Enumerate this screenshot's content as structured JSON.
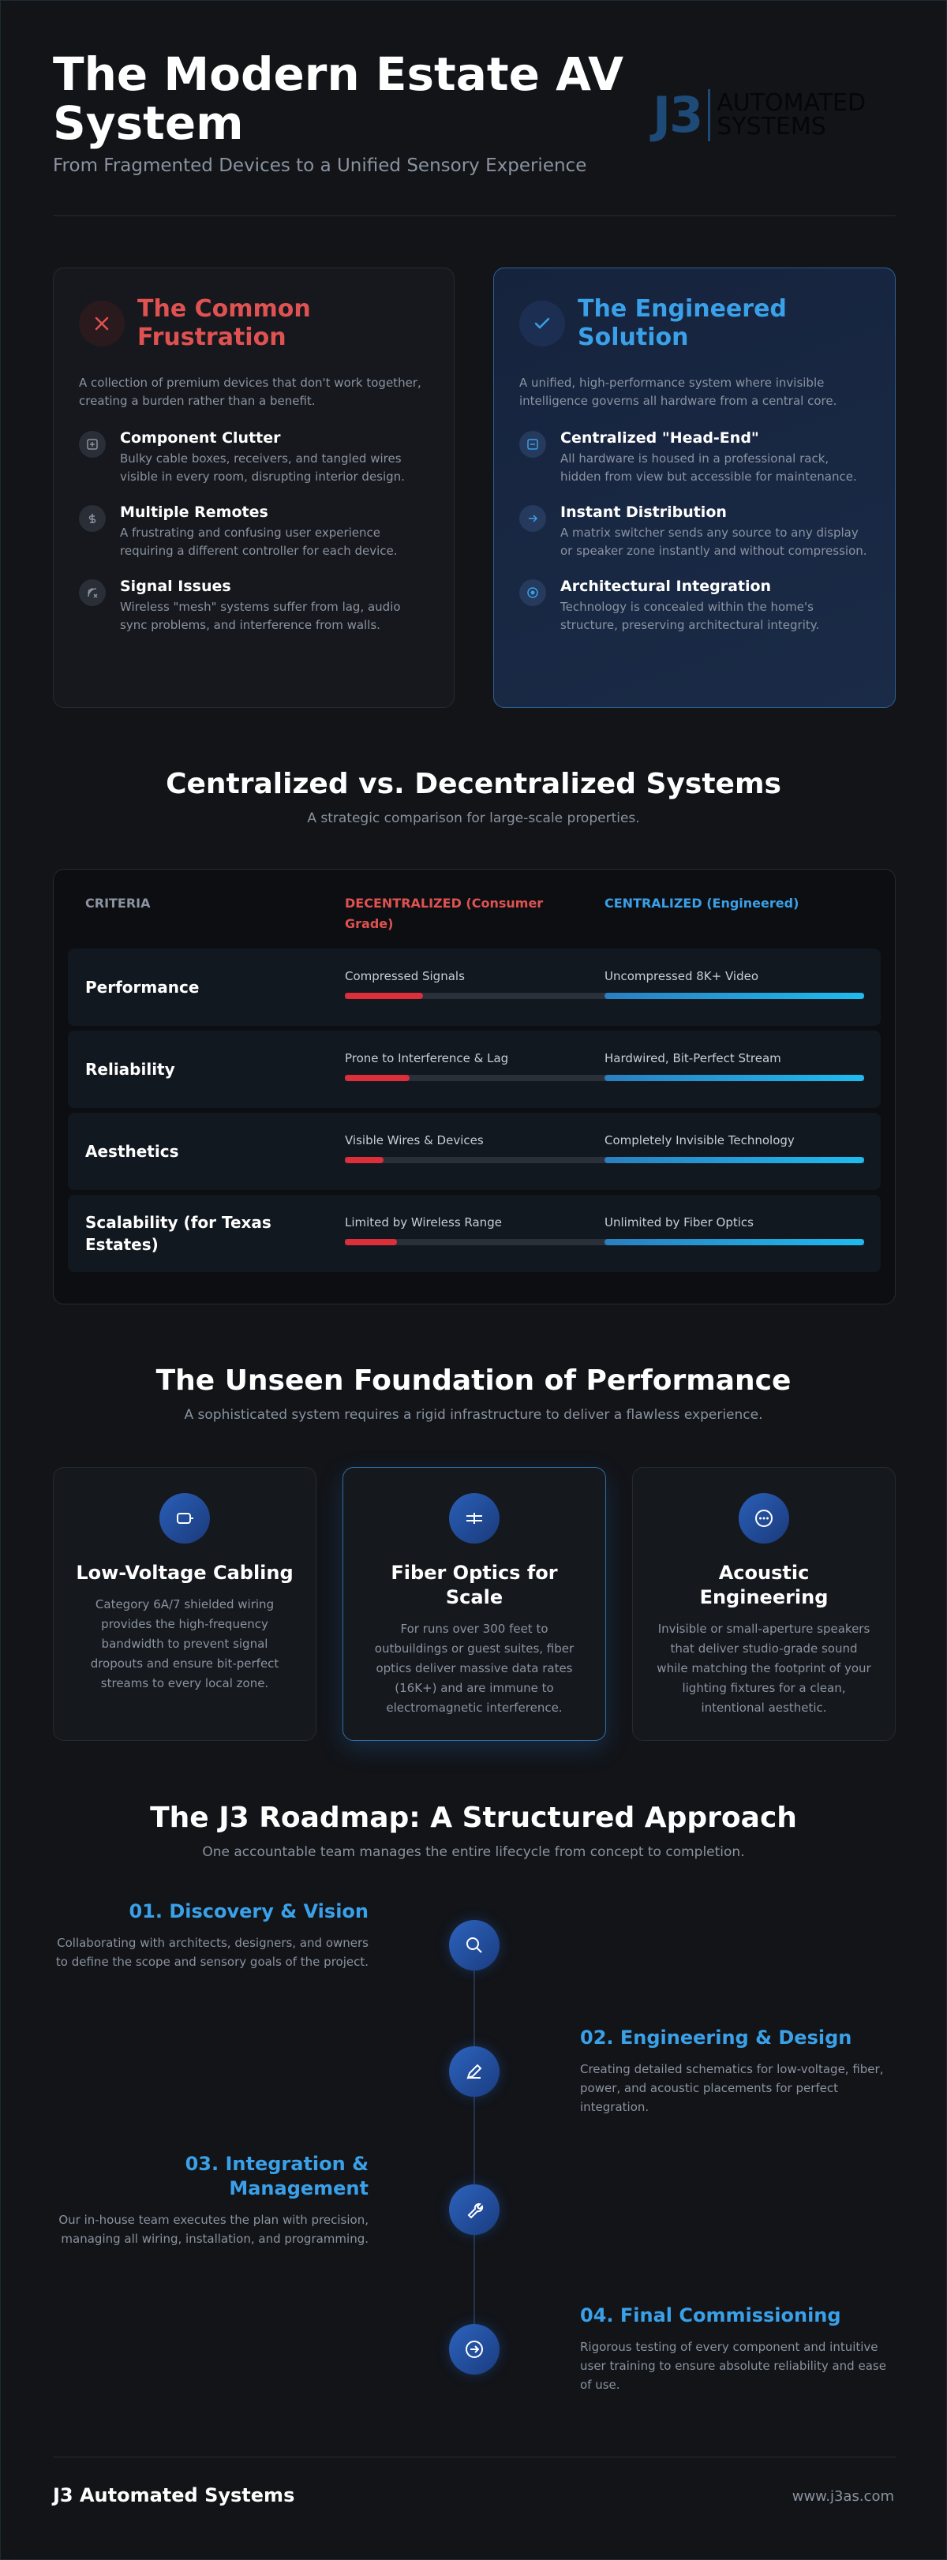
{
  "header": {
    "title": "The Modern Estate AV System",
    "subtitle": "From Fragmented Devices to a Unified Sensory Experience",
    "logo": {
      "mark": "J3",
      "line1": "AUTOMATED",
      "line2": "SYSTEMS"
    }
  },
  "problem": {
    "title": "The Common Frustration",
    "description": "A collection of premium devices that don't work together, creating a burden rather than a benefit.",
    "items": [
      {
        "title": "Component Clutter",
        "text": "Bulky cable boxes, receivers, and tangled wires visible in every room, disrupting interior design."
      },
      {
        "title": "Multiple Remotes",
        "text": "A frustrating and confusing user experience requiring a different controller for each device."
      },
      {
        "title": "Signal Issues",
        "text": "Wireless \"mesh\" systems suffer from lag, audio sync problems, and interference from walls."
      }
    ]
  },
  "solution": {
    "title": "The Engineered Solution",
    "description": "A unified, high-performance system where invisible intelligence governs all hardware from a central core.",
    "items": [
      {
        "title": "Centralized \"Head-End\"",
        "text": "All hardware is housed in a professional rack, hidden from view but accessible for maintenance."
      },
      {
        "title": "Instant Distribution",
        "text": "A matrix switcher sends any source to any display or speaker zone instantly and without compression."
      },
      {
        "title": "Architectural Integration",
        "text": "Technology is concealed within the home's structure, preserving architectural integrity."
      }
    ]
  },
  "comparison": {
    "title": "Centralized vs. Decentralized Systems",
    "subtitle": "A strategic comparison for large-scale properties.",
    "headers": [
      "CRITERIA",
      "DECENTRALIZED (Consumer Grade)",
      "CENTRALIZED (Engineered)"
    ],
    "rows": [
      {
        "criteria": "Performance",
        "decentralized": {
          "label": "Compressed Signals",
          "level": 30
        },
        "centralized": {
          "label": "Uncompressed 8K+ Video",
          "level": 100
        }
      },
      {
        "criteria": "Reliability",
        "decentralized": {
          "label": "Prone to Interference & Lag",
          "level": 25
        },
        "centralized": {
          "label": "Hardwired, Bit-Perfect Stream",
          "level": 100
        }
      },
      {
        "criteria": "Aesthetics",
        "decentralized": {
          "label": "Visible Wires & Devices",
          "level": 15
        },
        "centralized": {
          "label": "Completely Invisible Technology",
          "level": 100
        }
      },
      {
        "criteria": "Scalability (for Texas Estates)",
        "decentralized": {
          "label": "Limited by Wireless Range",
          "level": 20
        },
        "centralized": {
          "label": "Unlimited by Fiber Optics",
          "level": 100
        }
      }
    ]
  },
  "foundation": {
    "title": "The Unseen Foundation of Performance",
    "subtitle": "A sophisticated system requires a rigid infrastructure to deliver a flawless experience.",
    "cards": [
      {
        "title": "Low-Voltage Cabling",
        "text": "Category 6A/7 shielded wiring provides the high-frequency bandwidth to prevent signal dropouts and ensure bit-perfect streams to every local zone."
      },
      {
        "title": "Fiber Optics for Scale",
        "text": "For runs over 300 feet to outbuildings or guest suites, fiber optics deliver massive data rates (16K+) and are immune to electromagnetic interference."
      },
      {
        "title": "Acoustic Engineering",
        "text": "Invisible or small-aperture speakers that deliver studio-grade sound while matching the footprint of your lighting fixtures for a clean, intentional aesthetic."
      }
    ]
  },
  "roadmap": {
    "title": "The J3 Roadmap: A Structured Approach",
    "subtitle": "One accountable team manages the entire lifecycle from concept to completion.",
    "steps": [
      {
        "title": "01. Discovery & Vision",
        "text": "Collaborating with architects, designers, and owners to define the scope and sensory goals of the project."
      },
      {
        "title": "02. Engineering & Design",
        "text": "Creating detailed schematics for low-voltage, fiber, power, and acoustic placements for perfect integration."
      },
      {
        "title": "03. Integration & Management",
        "text": "Our in-house team executes the plan with precision, managing all wiring, installation, and programming."
      },
      {
        "title": "04. Final Commissioning",
        "text": "Rigorous testing of every component and intuitive user training to ensure absolute reliability and ease of use."
      }
    ]
  },
  "footer": {
    "brand": "J3 Automated Systems",
    "url": "www.j3as.com"
  }
}
